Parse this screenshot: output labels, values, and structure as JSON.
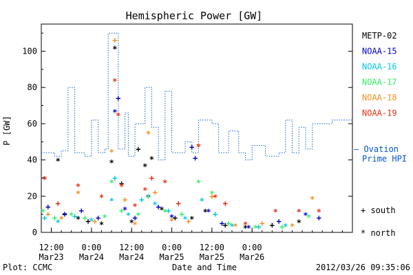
{
  "chart_data": {
    "type": "scatter",
    "title": "Hemispheric Power [GW]",
    "xlabel": "Date and Time",
    "ylabel": "P [GW]",
    "xlim": [
      "2012-03-23 09:00",
      "2012-03-27 06:00"
    ],
    "ylim": [
      0,
      115
    ],
    "yticks": [
      0,
      20,
      40,
      60,
      80,
      100
    ],
    "xticks": [
      {
        "time": "2012-03-23 12:00",
        "label1": "12:00",
        "label2": "Mar23"
      },
      {
        "time": "2012-03-24 00:00",
        "label1": "0:00",
        "label2": "Mar24"
      },
      {
        "time": "2012-03-24 12:00",
        "label1": "12:00",
        "label2": "Mar24"
      },
      {
        "time": "2012-03-25 00:00",
        "label1": "0:00",
        "label2": "Mar25"
      },
      {
        "time": "2012-03-25 12:00",
        "label1": "12:00",
        "label2": "Mar25"
      },
      {
        "time": "2012-03-26 00:00",
        "label1": "0:00",
        "label2": "Mar26"
      }
    ],
    "satellites": [
      {
        "name": "METP-02",
        "color": "#000000"
      },
      {
        "name": "NOAA-15",
        "color": "#0000cc"
      },
      {
        "name": "NOAA-16",
        "color": "#00c8e0"
      },
      {
        "name": "NOAA-17",
        "color": "#33ee66"
      },
      {
        "name": "NOAA-18",
        "color": "#f09020"
      },
      {
        "name": "NOAA-19",
        "color": "#e03010"
      }
    ],
    "model": {
      "name": "Ovation Prime HPI",
      "legend_line1": "— Ovation",
      "legend_line2": "Prime HPI",
      "color": "#0055cc",
      "points": [
        [
          "2012-03-23 09:00",
          44
        ],
        [
          "2012-03-23 13:00",
          42
        ],
        [
          "2012-03-23 15:00",
          45
        ],
        [
          "2012-03-23 17:00",
          80
        ],
        [
          "2012-03-23 19:00",
          44
        ],
        [
          "2012-03-23 22:00",
          42
        ],
        [
          "2012-03-24 00:00",
          62
        ],
        [
          "2012-03-24 02:00",
          44
        ],
        [
          "2012-03-24 04:00",
          46
        ],
        [
          "2012-03-24 05:00",
          110
        ],
        [
          "2012-03-24 08:00",
          46
        ],
        [
          "2012-03-24 10:00",
          66
        ],
        [
          "2012-03-24 11:00",
          42
        ],
        [
          "2012-03-24 13:00",
          60
        ],
        [
          "2012-03-24 16:00",
          80
        ],
        [
          "2012-03-24 18:00",
          58
        ],
        [
          "2012-03-24 20:00",
          40
        ],
        [
          "2012-03-24 22:00",
          78
        ],
        [
          "2012-03-25 00:00",
          44
        ],
        [
          "2012-03-25 04:00",
          50
        ],
        [
          "2012-03-25 06:00",
          44
        ],
        [
          "2012-03-25 08:00",
          62
        ],
        [
          "2012-03-25 12:00",
          60
        ],
        [
          "2012-03-25 14:00",
          44
        ],
        [
          "2012-03-25 17:00",
          56
        ],
        [
          "2012-03-25 20:00",
          44
        ],
        [
          "2012-03-25 22:00",
          40
        ],
        [
          "2012-03-26 00:00",
          48
        ],
        [
          "2012-03-26 04:00",
          42
        ],
        [
          "2012-03-26 08:00",
          44
        ],
        [
          "2012-03-26 10:00",
          62
        ],
        [
          "2012-03-26 12:00",
          44
        ],
        [
          "2012-03-26 14:00",
          58
        ],
        [
          "2012-03-26 16:00",
          46
        ],
        [
          "2012-03-26 18:00",
          60
        ],
        [
          "2012-03-27 00:00",
          62
        ]
      ]
    },
    "symbol_legend": {
      "plus": "+ south",
      "star": "* north"
    },
    "series": [
      {
        "name": "METP-02",
        "points": [
          [
            "2012-03-23 10:00",
            30,
            "*"
          ],
          [
            "2012-03-23 14:00",
            40,
            "*"
          ],
          [
            "2012-03-23 16:00",
            10,
            "+"
          ],
          [
            "2012-03-23 20:00",
            8,
            "*"
          ],
          [
            "2012-03-23 23:00",
            6,
            "+"
          ],
          [
            "2012-03-24 03:00",
            5,
            "*"
          ],
          [
            "2012-03-24 06:00",
            39,
            "*"
          ],
          [
            "2012-03-24 07:00",
            102,
            "*"
          ],
          [
            "2012-03-24 09:00",
            27,
            "+"
          ],
          [
            "2012-03-24 12:00",
            6,
            "*"
          ],
          [
            "2012-03-24 14:00",
            46,
            "+"
          ],
          [
            "2012-03-24 16:00",
            37,
            "*"
          ],
          [
            "2012-03-24 18:00",
            41,
            "*"
          ],
          [
            "2012-03-24 21:00",
            13,
            "*"
          ],
          [
            "2012-03-25 01:00",
            8,
            "+"
          ],
          [
            "2012-03-25 06:00",
            8,
            "*"
          ],
          [
            "2012-03-25 10:00",
            12,
            "*"
          ],
          [
            "2012-03-25 16:00",
            4,
            "+"
          ],
          [
            "2012-03-25 22:00",
            3,
            "*"
          ],
          [
            "2012-03-26 06:00",
            4,
            "+"
          ],
          [
            "2012-03-26 14:00",
            6,
            "*"
          ]
        ]
      },
      {
        "name": "NOAA-15",
        "points": [
          [
            "2012-03-23 11:00",
            14,
            "+"
          ],
          [
            "2012-03-23 16:00",
            10,
            "*"
          ],
          [
            "2012-03-23 21:00",
            12,
            "+"
          ],
          [
            "2012-03-24 02:00",
            8,
            "+"
          ],
          [
            "2012-03-24 07:00",
            67,
            "*"
          ],
          [
            "2012-03-24 08:00",
            74,
            "+"
          ],
          [
            "2012-03-24 10:00",
            13,
            "*"
          ],
          [
            "2012-03-24 13:00",
            8,
            "+"
          ],
          [
            "2012-03-24 17:00",
            20,
            "*"
          ],
          [
            "2012-03-24 20:00",
            14,
            "+"
          ],
          [
            "2012-03-25 00:00",
            9,
            "*"
          ],
          [
            "2012-03-25 06:00",
            47,
            "+"
          ],
          [
            "2012-03-25 07:00",
            41,
            "+"
          ],
          [
            "2012-03-25 11:00",
            12,
            "*"
          ],
          [
            "2012-03-25 15:00",
            5,
            "+"
          ],
          [
            "2012-03-25 23:00",
            3,
            "*"
          ],
          [
            "2012-03-26 08:00",
            6,
            "+"
          ],
          [
            "2012-03-26 16:00",
            10,
            "*"
          ],
          [
            "2012-03-26 20:00",
            8,
            "+"
          ]
        ]
      },
      {
        "name": "NOAA-16",
        "points": [
          [
            "2012-03-23 10:00",
            8,
            "+"
          ],
          [
            "2012-03-23 14:00",
            6,
            "*"
          ],
          [
            "2012-03-23 19:00",
            9,
            "+"
          ],
          [
            "2012-03-24 00:00",
            7,
            "*"
          ],
          [
            "2012-03-24 06:00",
            18,
            "*"
          ],
          [
            "2012-03-24 07:00",
            30,
            "+"
          ],
          [
            "2012-03-24 11:00",
            10,
            "*"
          ],
          [
            "2012-03-24 15:00",
            18,
            "+"
          ],
          [
            "2012-03-24 19:00",
            16,
            "*"
          ],
          [
            "2012-03-24 23:00",
            12,
            "+"
          ],
          [
            "2012-03-25 04:00",
            8,
            "*"
          ],
          [
            "2012-03-25 09:00",
            18,
            "*"
          ],
          [
            "2012-03-25 13:00",
            10,
            "+"
          ],
          [
            "2012-03-25 18:00",
            4,
            "*"
          ],
          [
            "2012-03-26 02:00",
            3,
            "+"
          ],
          [
            "2012-03-26 10:00",
            4,
            "*"
          ]
        ]
      },
      {
        "name": "NOAA-17",
        "points": [
          [
            "2012-03-23 09:30",
            12,
            "*"
          ],
          [
            "2012-03-23 13:00",
            8,
            "+"
          ],
          [
            "2012-03-23 18:00",
            10,
            "*"
          ],
          [
            "2012-03-23 22:00",
            8,
            "+"
          ],
          [
            "2012-03-24 04:00",
            9,
            "*"
          ],
          [
            "2012-03-24 06:00",
            28,
            "*"
          ],
          [
            "2012-03-24 09:00",
            12,
            "+"
          ],
          [
            "2012-03-24 14:00",
            10,
            "*"
          ],
          [
            "2012-03-24 17:00",
            20,
            "+"
          ],
          [
            "2012-03-24 22:00",
            12,
            "*"
          ],
          [
            "2012-03-25 03:00",
            10,
            "+"
          ],
          [
            "2012-03-25 08:00",
            28,
            "*"
          ],
          [
            "2012-03-25 12:00",
            22,
            "*"
          ],
          [
            "2012-03-25 17:00",
            5,
            "+"
          ],
          [
            "2012-03-26 01:00",
            3,
            "*"
          ],
          [
            "2012-03-26 09:00",
            3,
            "+"
          ],
          [
            "2012-03-26 17:00",
            9,
            "*"
          ]
        ]
      },
      {
        "name": "NOAA-18",
        "points": [
          [
            "2012-03-23 11:00",
            10,
            "+"
          ],
          [
            "2012-03-23 15:00",
            8,
            "*"
          ],
          [
            "2012-03-23 20:00",
            22,
            "*"
          ],
          [
            "2012-03-24 01:00",
            6,
            "+"
          ],
          [
            "2012-03-24 06:00",
            45,
            "*"
          ],
          [
            "2012-03-24 07:00",
            106,
            "+"
          ],
          [
            "2012-03-24 10:00",
            18,
            "+"
          ],
          [
            "2012-03-24 13:00",
            5,
            "*"
          ],
          [
            "2012-03-24 17:00",
            55,
            "*"
          ],
          [
            "2012-03-24 19:00",
            22,
            "+"
          ],
          [
            "2012-03-25 00:00",
            7,
            "*"
          ],
          [
            "2012-03-25 05:00",
            6,
            "+"
          ],
          [
            "2012-03-25 08:00",
            48,
            "*"
          ],
          [
            "2012-03-25 12:00",
            20,
            "+"
          ],
          [
            "2012-03-25 19:00",
            4,
            "*"
          ],
          [
            "2012-03-26 03:00",
            5,
            "+"
          ],
          [
            "2012-03-26 12:00",
            4,
            "*"
          ],
          [
            "2012-03-26 18:00",
            19,
            "*"
          ]
        ]
      },
      {
        "name": "NOAA-19",
        "points": [
          [
            "2012-03-23 10:00",
            30,
            "*"
          ],
          [
            "2012-03-23 14:00",
            16,
            "+"
          ],
          [
            "2012-03-23 20:00",
            26,
            "*"
          ],
          [
            "2012-03-24 03:00",
            20,
            "*"
          ],
          [
            "2012-03-24 07:00",
            84,
            "*"
          ],
          [
            "2012-03-24 08:00",
            65,
            "*"
          ],
          [
            "2012-03-24 09:00",
            26,
            "*"
          ],
          [
            "2012-03-24 13:00",
            15,
            "*"
          ],
          [
            "2012-03-24 16:00",
            24,
            "*"
          ],
          [
            "2012-03-24 18:00",
            30,
            "+"
          ],
          [
            "2012-03-24 22:00",
            28,
            "*"
          ],
          [
            "2012-03-25 02:00",
            16,
            "+"
          ],
          [
            "2012-03-25 08:00",
            48,
            "*"
          ],
          [
            "2012-03-25 13:00",
            20,
            "*"
          ],
          [
            "2012-03-25 16:00",
            16,
            "+"
          ],
          [
            "2012-03-25 22:00",
            5,
            "*"
          ],
          [
            "2012-03-26 07:00",
            12,
            "*"
          ],
          [
            "2012-03-26 14:00",
            12,
            "*"
          ],
          [
            "2012-03-26 20:00",
            12,
            "*"
          ]
        ]
      }
    ]
  },
  "footer": {
    "left": "Plot: CCMC",
    "right": "2012/03/26 09:35:06"
  }
}
